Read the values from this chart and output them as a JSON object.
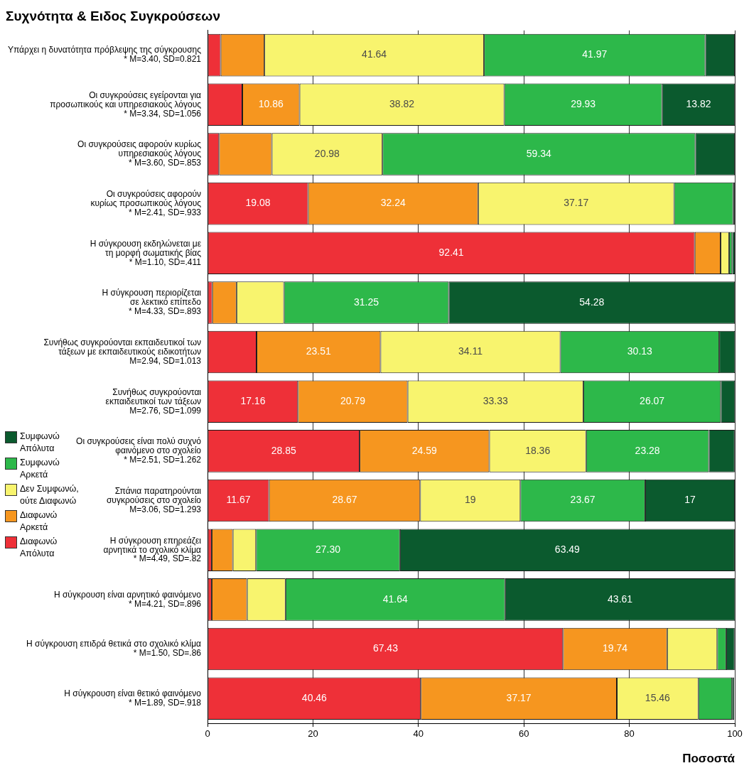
{
  "chart_data": {
    "type": "bar",
    "orientation": "horizontal",
    "stacked": true,
    "title": "Συχνότητα & Ειδος Συγκρούσεων",
    "xlabel": "Ποσοστά",
    "categories": [
      "Υπάρχει η δυνατότητα πρόβλεψης της σύγκρουσης\n* M=3.40, SD=0.821",
      "Οι συγκρούσεις εγείρονται για\nπροσωπικούς και υπηρεσιακούς λόγους\n* M=3.34, SD=1.056",
      "Οι συγκρούσεις αφορούν κυρίως\nυπηρεσιακούς λόγους\n* M=3.60, SD=.853",
      "Οι συγκρούσεις αφορούν\nκυρίως προσωπικούς λόγους\n* M=2.41, SD=.933",
      "Η σύγκρουση εκδηλώνεται με\nτη μορφή σωματικής βίας\n* M=1.10, SD=.411",
      "Η σύγκρουση περιορίζεται\nσε λεκτικό επίπεδο\n* M=4.33, SD=.893",
      "Συνήθως συγκρούονται εκπαιδευτικοί των\nτάξεων με εκπαιδευτικούς ειδικοτήτων\nM=2.94, SD=1.013",
      "Συνήθως συγκρούονται\nεκπαιδευτικοί των τάξεων\nM=2.76, SD=1.099",
      "Οι συγκρούσεις είναι πολύ συχνό\nφαινόμενο στο σχολείο\n* M=2.51, SD=1.262",
      "Σπάνια παρατηρούνται\nσυγκρούσεις στο σχολείο\nM=3.06, SD=1.293",
      "Η σύγκρουση επηρεάζει\nαρνητικά το σχολικό κλίμα\n* M=4.49, SD=.82",
      "Η σύγκρουση είναι αρνητικό φαινόμενο\n* M=4.21, SD=.896",
      "Η σύγκρουση επιδρά θετικά στο σχολικό κλίμα\n* M=1.50, SD=.86",
      "Η σύγκρουση είναι θετικό φαινόμενο\n* M=1.89, SD=.918"
    ],
    "series": [
      {
        "name": "Διαφωνώ Απόλυτα",
        "color": "#ee3038",
        "values": [
          2.5,
          6.6,
          2.2,
          19.08,
          92.41,
          0.9,
          9.3,
          17.16,
          28.85,
          11.67,
          0.8,
          0.8,
          67.43,
          40.46
        ],
        "value_labels": [
          null,
          null,
          null,
          "19.08",
          "92.41",
          null,
          null,
          "17.16",
          "28.85",
          "11.67",
          null,
          null,
          "67.43",
          "40.46"
        ]
      },
      {
        "name": "Διαφωνώ Αρκετά",
        "color": "#f6961f",
        "values": [
          8.3,
          10.86,
          10.0,
          32.24,
          4.9,
          4.6,
          23.51,
          20.79,
          24.59,
          28.67,
          4.0,
          6.7,
          19.74,
          37.17
        ],
        "value_labels": [
          null,
          "10.86",
          null,
          "32.24",
          null,
          null,
          "23.51",
          "20.79",
          "24.59",
          "28.67",
          null,
          null,
          "19.74",
          "37.17"
        ]
      },
      {
        "name": "Δεν Συμφωνώ, ούτε Διαφωνώ",
        "color": "#f8f46e",
        "values": [
          41.64,
          38.82,
          20.98,
          37.17,
          1.6,
          9.0,
          34.11,
          33.33,
          18.36,
          19,
          4.4,
          7.3,
          9.5,
          15.46
        ],
        "value_labels": [
          "41.64",
          "38.82",
          "20.98",
          "37.17",
          null,
          null,
          "34.11",
          "33.33",
          "18.36",
          "19",
          null,
          null,
          null,
          "15.46"
        ]
      },
      {
        "name": "Συμφωνώ Αρκετά",
        "color": "#2db84a",
        "values": [
          41.97,
          29.93,
          59.34,
          11.2,
          0.6,
          31.25,
          30.13,
          26.07,
          23.28,
          23.67,
          27.3,
          41.64,
          1.7,
          6.4
        ],
        "value_labels": [
          "41.97",
          "29.93",
          "59.34",
          null,
          null,
          "31.25",
          "30.13",
          "26.07",
          "23.28",
          "23.67",
          "27.30",
          "41.64",
          null,
          null
        ]
      },
      {
        "name": "Συμφωνώ Απόλυτα",
        "color": "#0b5a2e",
        "values": [
          5.6,
          13.82,
          7.5,
          0.3,
          0.5,
          54.28,
          3.0,
          2.7,
          4.9,
          17,
          63.49,
          43.61,
          1.6,
          0.4
        ],
        "value_labels": [
          null,
          "13.82",
          null,
          null,
          null,
          "54.28",
          null,
          null,
          null,
          "17",
          "63.49",
          "43.61",
          null,
          null
        ]
      }
    ],
    "xlim": [
      0,
      100
    ],
    "xticks": [
      0,
      20,
      40,
      60,
      80,
      100
    ],
    "grid": "x",
    "legend": "left"
  }
}
